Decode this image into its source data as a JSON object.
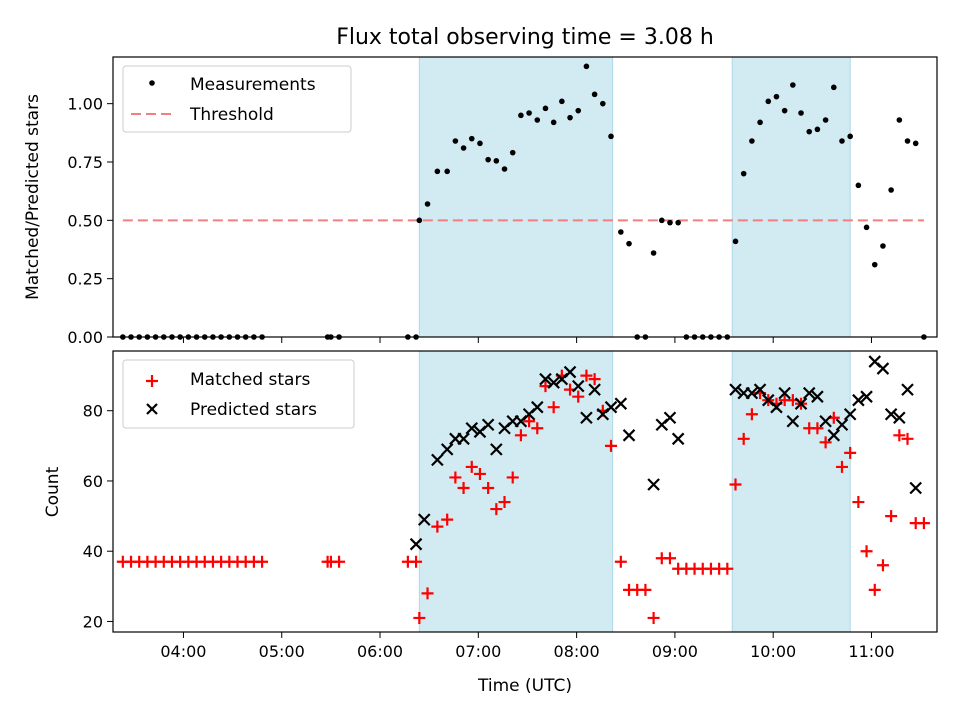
{
  "title": "Flux total observing time = 3.08 h",
  "chart_data": [
    {
      "type": "scatter",
      "ylabel": "Matched/Predicted stars",
      "xlim": [
        "03:17",
        "11:40"
      ],
      "ylim": [
        0,
        1.2
      ],
      "yticks": [
        "0.00",
        "0.25",
        "0.50",
        "0.75",
        "1.00"
      ],
      "ytick_values": [
        0,
        0.25,
        0.5,
        0.75,
        1.0
      ],
      "shaded_intervals": [
        [
          "06:24",
          "08:22"
        ],
        [
          "09:35",
          "10:47"
        ]
      ],
      "shade_color": "#add8e6",
      "legend": {
        "placement": "upper-left",
        "measurements": "Measurements",
        "threshold": "Threshold"
      },
      "threshold": {
        "y": 0.5,
        "x": [
          "03:23",
          "11:32"
        ],
        "color": "#f08080"
      },
      "measurements": [
        [
          "03:23",
          0
        ],
        [
          "03:28",
          0
        ],
        [
          "03:33",
          0
        ],
        [
          "03:38",
          0
        ],
        [
          "03:43",
          0
        ],
        [
          "03:48",
          0
        ],
        [
          "03:53",
          0
        ],
        [
          "03:58",
          0
        ],
        [
          "04:03",
          0
        ],
        [
          "04:08",
          0
        ],
        [
          "04:13",
          0
        ],
        [
          "04:18",
          0
        ],
        [
          "04:23",
          0
        ],
        [
          "04:28",
          0
        ],
        [
          "04:33",
          0
        ],
        [
          "04:38",
          0
        ],
        [
          "04:43",
          0
        ],
        [
          "04:48",
          0
        ],
        [
          "05:28",
          0
        ],
        [
          "05:30",
          0
        ],
        [
          "05:35",
          0
        ],
        [
          "06:17",
          0
        ],
        [
          "06:22",
          0
        ],
        [
          "06:24",
          0.5
        ],
        [
          "06:29",
          0.57
        ],
        [
          "06:35",
          0.71
        ],
        [
          "06:41",
          0.71
        ],
        [
          "06:46",
          0.84
        ],
        [
          "06:51",
          0.81
        ],
        [
          "06:56",
          0.85
        ],
        [
          "07:01",
          0.83
        ],
        [
          "07:06",
          0.76
        ],
        [
          "07:11",
          0.755
        ],
        [
          "07:16",
          0.72
        ],
        [
          "07:21",
          0.79
        ],
        [
          "07:26",
          0.95
        ],
        [
          "07:31",
          0.96
        ],
        [
          "07:36",
          0.93
        ],
        [
          "07:41",
          0.98
        ],
        [
          "07:46",
          0.92
        ],
        [
          "07:51",
          1.01
        ],
        [
          "07:56",
          0.94
        ],
        [
          "08:01",
          0.97
        ],
        [
          "08:06",
          1.16
        ],
        [
          "08:11",
          1.04
        ],
        [
          "08:16",
          1.0
        ],
        [
          "08:21",
          0.86
        ],
        [
          "08:27",
          0.45
        ],
        [
          "08:32",
          0.4
        ],
        [
          "08:37",
          0
        ],
        [
          "08:42",
          0
        ],
        [
          "08:47",
          0.36
        ],
        [
          "08:52",
          0.5
        ],
        [
          "08:57",
          0.49
        ],
        [
          "09:02",
          0.49
        ],
        [
          "09:07",
          0
        ],
        [
          "09:12",
          0
        ],
        [
          "09:17",
          0
        ],
        [
          "09:22",
          0
        ],
        [
          "09:27",
          0
        ],
        [
          "09:32",
          0
        ],
        [
          "09:37",
          0.41
        ],
        [
          "09:42",
          0.7
        ],
        [
          "09:47",
          0.84
        ],
        [
          "09:52",
          0.92
        ],
        [
          "09:57",
          1.01
        ],
        [
          "10:02",
          1.03
        ],
        [
          "10:07",
          0.97
        ],
        [
          "10:12",
          1.08
        ],
        [
          "10:17",
          0.96
        ],
        [
          "10:22",
          0.88
        ],
        [
          "10:27",
          0.89
        ],
        [
          "10:32",
          0.93
        ],
        [
          "10:37",
          1.07
        ],
        [
          "10:42",
          0.84
        ],
        [
          "10:47",
          0.86
        ],
        [
          "10:52",
          0.65
        ],
        [
          "10:57",
          0.47
        ],
        [
          "11:02",
          0.31
        ],
        [
          "11:07",
          0.39
        ],
        [
          "11:12",
          0.63
        ],
        [
          "11:17",
          0.93
        ],
        [
          "11:22",
          0.84
        ],
        [
          "11:27",
          0.83
        ],
        [
          "11:32",
          0
        ]
      ]
    },
    {
      "type": "scatter",
      "xlabel": "Time (UTC)",
      "ylabel": "Count",
      "xticks": [
        "04:00",
        "05:00",
        "06:00",
        "07:00",
        "08:00",
        "09:00",
        "10:00",
        "11:00"
      ],
      "xlim": [
        "03:17",
        "11:40"
      ],
      "ylim": [
        17,
        97
      ],
      "yticks": [
        "20",
        "40",
        "60",
        "80"
      ],
      "ytick_values": [
        20,
        40,
        60,
        80
      ],
      "shaded_intervals": [
        [
          "06:24",
          "08:22"
        ],
        [
          "09:35",
          "10:47"
        ]
      ],
      "shade_color": "#add8e6",
      "legend": {
        "placement": "upper-left",
        "matched": "Matched stars",
        "predicted": "Predicted stars"
      },
      "series": [
        {
          "name": "Matched stars",
          "color": "#ff0000",
          "marker": "+",
          "points": [
            [
              "03:23",
              37
            ],
            [
              "03:28",
              37
            ],
            [
              "03:33",
              37
            ],
            [
              "03:38",
              37
            ],
            [
              "03:43",
              37
            ],
            [
              "03:48",
              37
            ],
            [
              "03:53",
              37
            ],
            [
              "03:58",
              37
            ],
            [
              "04:03",
              37
            ],
            [
              "04:08",
              37
            ],
            [
              "04:13",
              37
            ],
            [
              "04:18",
              37
            ],
            [
              "04:23",
              37
            ],
            [
              "04:28",
              37
            ],
            [
              "04:33",
              37
            ],
            [
              "04:38",
              37
            ],
            [
              "04:43",
              37
            ],
            [
              "04:48",
              37
            ],
            [
              "05:28",
              37
            ],
            [
              "05:30",
              37
            ],
            [
              "05:35",
              37
            ],
            [
              "06:17",
              37
            ],
            [
              "06:22",
              37
            ],
            [
              "06:24",
              21
            ],
            [
              "06:29",
              28
            ],
            [
              "06:35",
              47
            ],
            [
              "06:41",
              49
            ],
            [
              "06:46",
              61
            ],
            [
              "06:51",
              58
            ],
            [
              "06:56",
              64
            ],
            [
              "07:01",
              62
            ],
            [
              "07:06",
              58
            ],
            [
              "07:11",
              52
            ],
            [
              "07:16",
              54
            ],
            [
              "07:21",
              61
            ],
            [
              "07:26",
              73
            ],
            [
              "07:31",
              77
            ],
            [
              "07:36",
              75
            ],
            [
              "07:41",
              87
            ],
            [
              "07:46",
              81
            ],
            [
              "07:51",
              90
            ],
            [
              "07:56",
              86
            ],
            [
              "08:01",
              84
            ],
            [
              "08:06",
              90
            ],
            [
              "08:11",
              89
            ],
            [
              "08:16",
              80
            ],
            [
              "08:21",
              70
            ],
            [
              "08:27",
              37
            ],
            [
              "08:32",
              29
            ],
            [
              "08:37",
              29
            ],
            [
              "08:42",
              29
            ],
            [
              "08:47",
              21
            ],
            [
              "08:52",
              38
            ],
            [
              "08:57",
              38
            ],
            [
              "09:02",
              35
            ],
            [
              "09:07",
              35
            ],
            [
              "09:12",
              35
            ],
            [
              "09:17",
              35
            ],
            [
              "09:22",
              35
            ],
            [
              "09:27",
              35
            ],
            [
              "09:32",
              35
            ],
            [
              "09:37",
              59
            ],
            [
              "09:42",
              72
            ],
            [
              "09:47",
              79
            ],
            [
              "09:52",
              85
            ],
            [
              "09:57",
              83
            ],
            [
              "10:02",
              82
            ],
            [
              "10:07",
              83
            ],
            [
              "10:12",
              83
            ],
            [
              "10:17",
              82
            ],
            [
              "10:22",
              75
            ],
            [
              "10:27",
              75
            ],
            [
              "10:32",
              71
            ],
            [
              "10:37",
              78
            ],
            [
              "10:42",
              64
            ],
            [
              "10:47",
              68
            ],
            [
              "10:52",
              54
            ],
            [
              "10:57",
              40
            ],
            [
              "11:02",
              29
            ],
            [
              "11:07",
              36
            ],
            [
              "11:12",
              50
            ],
            [
              "11:17",
              73
            ],
            [
              "11:22",
              72
            ],
            [
              "11:27",
              48
            ],
            [
              "11:32",
              48
            ]
          ]
        },
        {
          "name": "Predicted stars",
          "color": "#000000",
          "marker": "x",
          "points": [
            [
              "06:22",
              42
            ],
            [
              "06:27",
              49
            ],
            [
              "06:35",
              66
            ],
            [
              "06:41",
              69
            ],
            [
              "06:46",
              72
            ],
            [
              "06:51",
              72
            ],
            [
              "06:56",
              75
            ],
            [
              "07:01",
              74
            ],
            [
              "07:06",
              76
            ],
            [
              "07:11",
              69
            ],
            [
              "07:16",
              75
            ],
            [
              "07:21",
              77
            ],
            [
              "07:26",
              77
            ],
            [
              "07:31",
              79
            ],
            [
              "07:36",
              81
            ],
            [
              "07:41",
              89
            ],
            [
              "07:46",
              88
            ],
            [
              "07:51",
              89
            ],
            [
              "07:56",
              91
            ],
            [
              "08:01",
              87
            ],
            [
              "08:06",
              78
            ],
            [
              "08:11",
              86
            ],
            [
              "08:16",
              79
            ],
            [
              "08:21",
              81
            ],
            [
              "08:27",
              82
            ],
            [
              "08:32",
              73
            ],
            [
              "08:47",
              59
            ],
            [
              "08:52",
              76
            ],
            [
              "08:57",
              78
            ],
            [
              "09:02",
              72
            ],
            [
              "09:37",
              86
            ],
            [
              "09:42",
              85
            ],
            [
              "09:47",
              85
            ],
            [
              "09:52",
              86
            ],
            [
              "09:57",
              83
            ],
            [
              "10:02",
              81
            ],
            [
              "10:07",
              85
            ],
            [
              "10:12",
              77
            ],
            [
              "10:17",
              82
            ],
            [
              "10:22",
              85
            ],
            [
              "10:27",
              84
            ],
            [
              "10:32",
              77
            ],
            [
              "10:37",
              73
            ],
            [
              "10:42",
              76
            ],
            [
              "10:47",
              79
            ],
            [
              "10:52",
              83
            ],
            [
              "10:57",
              84
            ],
            [
              "11:02",
              94
            ],
            [
              "11:07",
              92
            ],
            [
              "11:12",
              79
            ],
            [
              "11:17",
              78
            ],
            [
              "11:22",
              86
            ],
            [
              "11:27",
              58
            ]
          ]
        }
      ]
    }
  ]
}
